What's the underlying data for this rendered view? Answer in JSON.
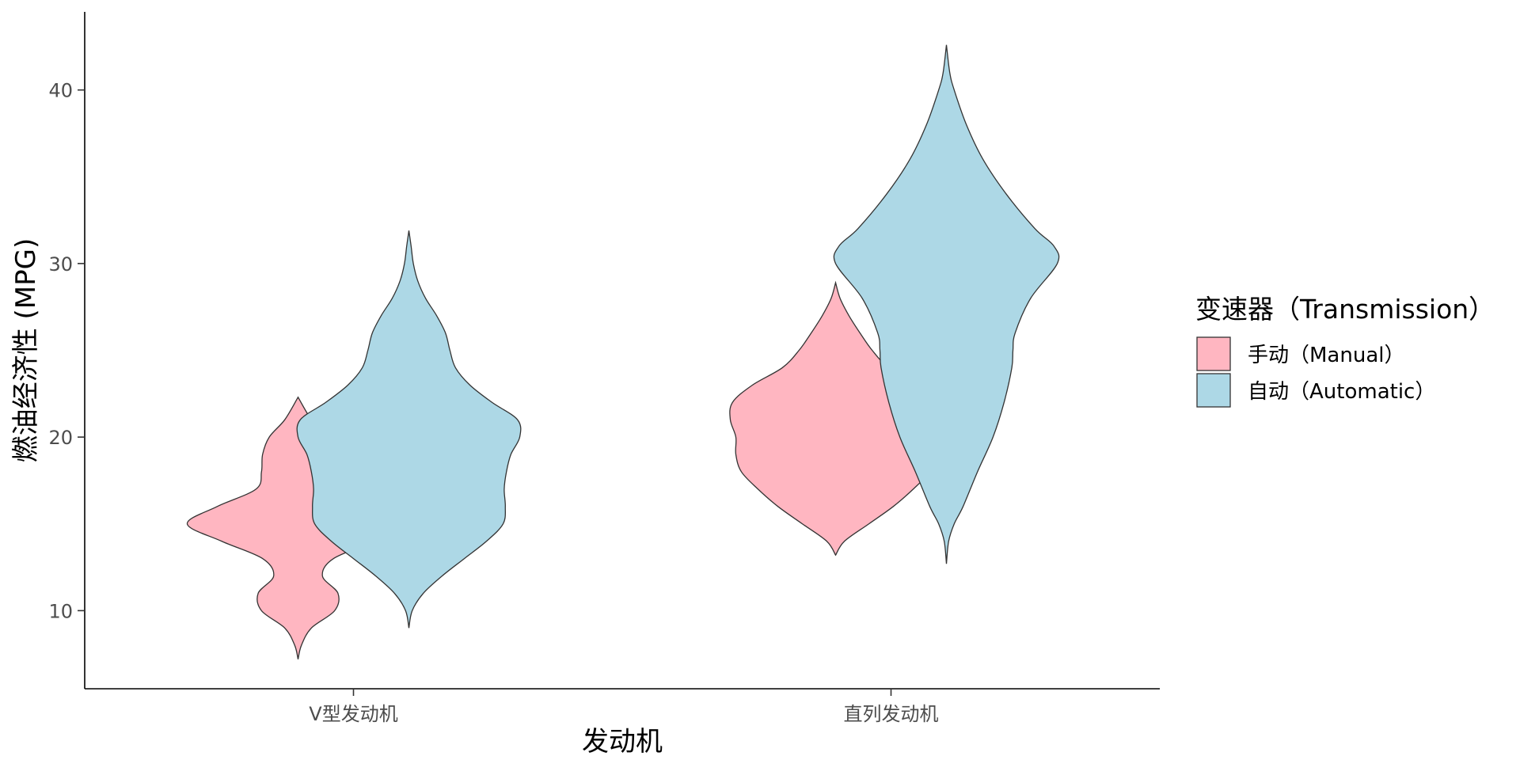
{
  "chart_data": {
    "type": "violin",
    "title": "",
    "xlabel": "发动机",
    "ylabel": "燃油经济性 (MPG)",
    "categories": [
      "V型发动机",
      "直列发动机"
    ],
    "y_ticks": [
      10,
      20,
      30,
      40
    ],
    "ylim": [
      5.5,
      44.5
    ],
    "grid": false,
    "legend": {
      "title": "变速器（Transmission）",
      "position": "right",
      "entries": [
        {
          "label": "手动（Manual）",
          "color": "#ffb6c1"
        },
        {
          "label": "自动（Automatic）",
          "color": "#add8e6"
        }
      ]
    },
    "series": [
      {
        "name": "手动（Manual）",
        "color": "#ffb6c1",
        "violins": [
          {
            "category": "V型发动机",
            "min": 7.2,
            "max": 22.3,
            "profile": [
              [
                7.2,
                0.0
              ],
              [
                8.0,
                0.03
              ],
              [
                9.0,
                0.12
              ],
              [
                10.0,
                0.33
              ],
              [
                11.0,
                0.36
              ],
              [
                12.0,
                0.22
              ],
              [
                13.0,
                0.32
              ],
              [
                14.0,
                0.69
              ],
              [
                15.0,
                1.0
              ],
              [
                16.0,
                0.73
              ],
              [
                17.0,
                0.38
              ],
              [
                18.0,
                0.33
              ],
              [
                19.0,
                0.32
              ],
              [
                20.0,
                0.26
              ],
              [
                21.0,
                0.12
              ],
              [
                22.3,
                0.0
              ]
            ]
          },
          {
            "category": "直列发动机",
            "min": 13.2,
            "max": 28.9,
            "profile": [
              [
                13.2,
                0.0
              ],
              [
                14.0,
                0.08
              ],
              [
                15.0,
                0.3
              ],
              [
                16.0,
                0.52
              ],
              [
                17.0,
                0.7
              ],
              [
                18.0,
                0.85
              ],
              [
                19.0,
                0.9
              ],
              [
                20.0,
                0.9
              ],
              [
                21.0,
                0.95
              ],
              [
                22.0,
                0.93
              ],
              [
                23.0,
                0.75
              ],
              [
                24.0,
                0.48
              ],
              [
                25.0,
                0.33
              ],
              [
                26.0,
                0.22
              ],
              [
                27.0,
                0.12
              ],
              [
                28.0,
                0.04
              ],
              [
                28.9,
                0.0
              ]
            ]
          }
        ]
      },
      {
        "name": "自动（Automatic）",
        "color": "#add8e6",
        "violins": [
          {
            "category": "V型发动机",
            "min": 9.0,
            "max": 31.9,
            "profile": [
              [
                9.0,
                0.0
              ],
              [
                10.0,
                0.03
              ],
              [
                11.0,
                0.13
              ],
              [
                12.0,
                0.3
              ],
              [
                13.0,
                0.5
              ],
              [
                14.0,
                0.7
              ],
              [
                15.0,
                0.85
              ],
              [
                16.0,
                0.87
              ],
              [
                17.0,
                0.86
              ],
              [
                18.0,
                0.88
              ],
              [
                19.0,
                0.92
              ],
              [
                20.0,
                1.0
              ],
              [
                21.0,
                0.98
              ],
              [
                22.0,
                0.75
              ],
              [
                23.0,
                0.55
              ],
              [
                24.0,
                0.42
              ],
              [
                25.0,
                0.37
              ],
              [
                26.0,
                0.33
              ],
              [
                27.0,
                0.25
              ],
              [
                28.0,
                0.15
              ],
              [
                29.0,
                0.08
              ],
              [
                30.0,
                0.04
              ],
              [
                31.0,
                0.02
              ],
              [
                31.9,
                0.0
              ]
            ]
          },
          {
            "category": "直列发动机",
            "min": 12.7,
            "max": 42.6,
            "profile": [
              [
                12.7,
                0.0
              ],
              [
                14.0,
                0.02
              ],
              [
                15.0,
                0.07
              ],
              [
                16.0,
                0.15
              ],
              [
                18.0,
                0.28
              ],
              [
                20.0,
                0.42
              ],
              [
                22.0,
                0.52
              ],
              [
                24.0,
                0.59
              ],
              [
                25.0,
                0.6
              ],
              [
                26.0,
                0.62
              ],
              [
                28.0,
                0.76
              ],
              [
                30.0,
                1.0
              ],
              [
                31.0,
                0.97
              ],
              [
                32.0,
                0.8
              ],
              [
                34.0,
                0.54
              ],
              [
                36.0,
                0.33
              ],
              [
                38.0,
                0.18
              ],
              [
                40.0,
                0.07
              ],
              [
                41.0,
                0.03
              ],
              [
                42.6,
                0.0
              ]
            ]
          }
        ]
      }
    ]
  }
}
